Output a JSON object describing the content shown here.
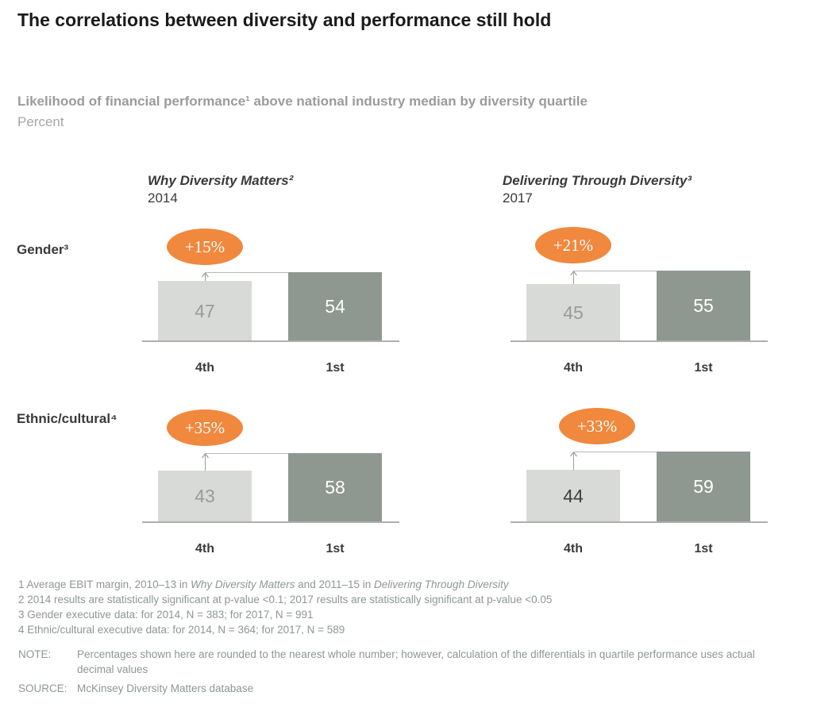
{
  "header": {
    "title": "The correlations between diversity and performance still hold",
    "subtitle": "Likelihood of financial performance¹ above national industry median by diversity quartile",
    "unit": "Percent"
  },
  "colors": {
    "accent_orange": "#f0883d",
    "bar_light": "#d7dad7",
    "bar_dark": "#8f9890",
    "axis_line": "#aeb0ae",
    "text_dark": "#3a3a3a",
    "text_gray": "#9b9b9b",
    "value_on_light": "#9a9a9a",
    "value_on_light_alt": "#3d3d3d",
    "value_on_dark": "#ffffff"
  },
  "chart_data": {
    "type": "bar",
    "title": "Likelihood of financial performance above national industry median by diversity quartile",
    "ylabel": "Percent",
    "legend_position": "none",
    "grid": false,
    "categories": [
      "4th",
      "1st"
    ],
    "columns": [
      {
        "study": "Why Diversity Matters²",
        "year": "2014"
      },
      {
        "study": "Delivering Through Diversity³",
        "year": "2017"
      }
    ],
    "rows": [
      {
        "label": "Gender³"
      },
      {
        "label": "Ethnic/cultural⁴"
      }
    ],
    "panels": [
      {
        "row": 0,
        "col": 0,
        "delta_label": "+15%",
        "values": [
          47,
          54
        ]
      },
      {
        "row": 0,
        "col": 1,
        "delta_label": "+21%",
        "values": [
          45,
          55
        ]
      },
      {
        "row": 1,
        "col": 0,
        "delta_label": "+35%",
        "values": [
          43,
          58
        ]
      },
      {
        "row": 1,
        "col": 1,
        "delta_label": "+33%",
        "values": [
          44,
          59
        ],
        "light_value_dark_text": true
      }
    ]
  },
  "footnotes": [
    [
      {
        "t": "1 Average EBIT margin, 2010–13 in "
      },
      {
        "t": "Why Diversity Matters",
        "i": true
      },
      {
        "t": " and 2011–15 in "
      },
      {
        "t": "Delivering Through Diversity",
        "i": true
      }
    ],
    [
      {
        "t": "2 2014 results are statistically significant at p-value <0.1; 2017 results are statistically significant at p-value <0.05"
      }
    ],
    [
      {
        "t": "3 Gender executive data: for 2014, N = 383; for 2017, N = 991"
      }
    ],
    [
      {
        "t": "4 Ethnic/cultural executive data: for 2014, N = 364; for 2017, N = 589"
      }
    ]
  ],
  "footer": {
    "note_label": "NOTE:",
    "note_text": "Percentages shown here are rounded to the nearest whole number; however, calculation of the differentials in quartile performance uses actual decimal values",
    "source_label": "SOURCE:",
    "source_text": "McKinsey Diversity Matters database"
  }
}
